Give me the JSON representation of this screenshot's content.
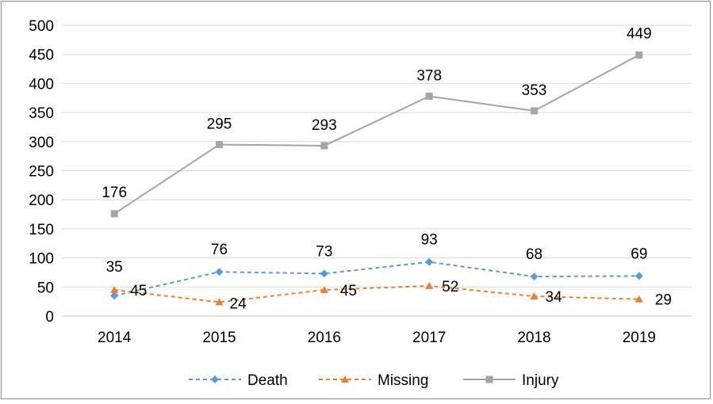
{
  "chart_data": {
    "type": "line",
    "categories": [
      "2014",
      "2015",
      "2016",
      "2017",
      "2018",
      "2019"
    ],
    "ylim": [
      0,
      500
    ],
    "yticks": [
      0,
      50,
      100,
      150,
      200,
      250,
      300,
      350,
      400,
      450,
      500
    ],
    "grid": true,
    "legend_position": "bottom",
    "series": [
      {
        "name": "Death",
        "values": [
          35,
          76,
          73,
          93,
          68,
          69
        ],
        "color": "#5b9bd5",
        "marker": "diamond",
        "line_style": "dashed"
      },
      {
        "name": "Missing",
        "values": [
          45,
          24,
          45,
          52,
          34,
          29
        ],
        "color": "#ed7d31",
        "marker": "triangle",
        "line_style": "dashed"
      },
      {
        "name": "Injury",
        "values": [
          176,
          295,
          293,
          378,
          353,
          449
        ],
        "color": "#a5a5a5",
        "marker": "square",
        "line_style": "solid"
      }
    ]
  }
}
